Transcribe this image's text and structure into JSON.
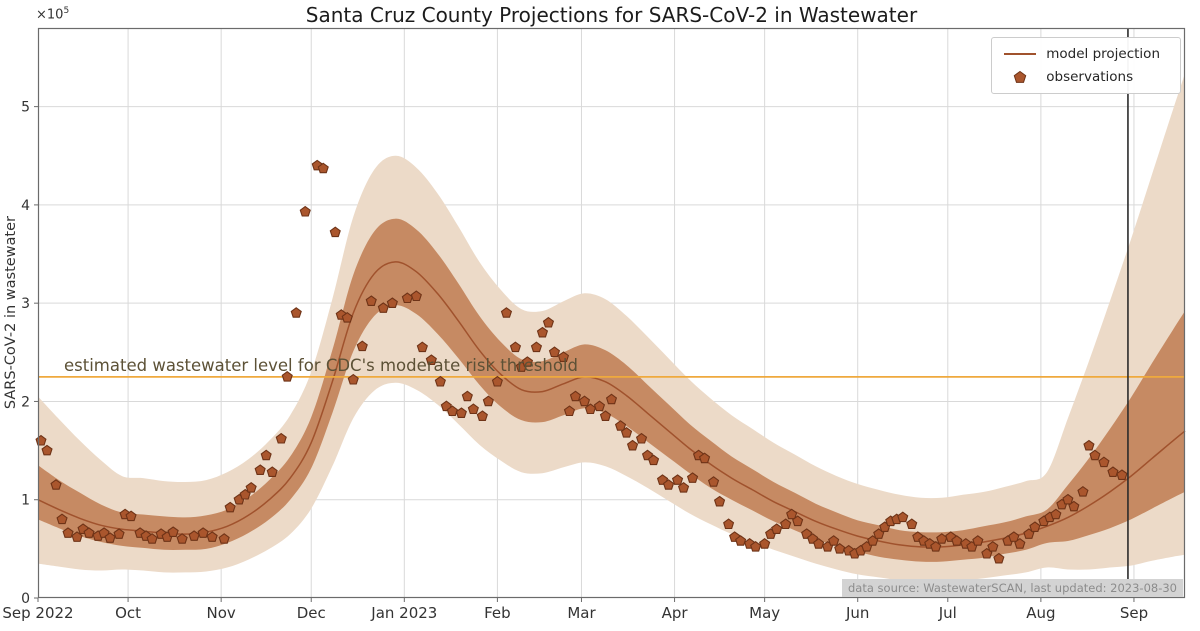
{
  "title": "Santa Cruz County Projections for SARS-CoV-2 in Wastewater",
  "axes": {
    "ylabel": "SARS-CoV-2 in wastewater",
    "offset_text": {
      "base": "×10",
      "exp": "5"
    },
    "y_ticks": [
      0,
      1,
      2,
      3,
      4,
      5
    ],
    "x_ticks": [
      {
        "label": "Sep 2022",
        "day": 0
      },
      {
        "label": "Oct",
        "day": 30
      },
      {
        "label": "Nov",
        "day": 61
      },
      {
        "label": "Dec",
        "day": 91
      },
      {
        "label": "Jan 2023",
        "day": 122
      },
      {
        "label": "Feb",
        "day": 153
      },
      {
        "label": "Mar",
        "day": 181
      },
      {
        "label": "Apr",
        "day": 212
      },
      {
        "label": "May",
        "day": 242
      },
      {
        "label": "Jun",
        "day": 273
      },
      {
        "label": "Jul",
        "day": 303
      },
      {
        "label": "Aug",
        "day": 334
      },
      {
        "label": "Sep",
        "day": 365
      }
    ],
    "xlim_days": [
      0,
      382
    ],
    "ylim": [
      0,
      5.8
    ],
    "grid": true
  },
  "legend": {
    "position": "upper right",
    "items": [
      {
        "label": "model projection",
        "type": "line"
      },
      {
        "label": "observations",
        "type": "pentagon"
      }
    ]
  },
  "threshold": {
    "value": 2.25,
    "label": "estimated wastewater level for CDC's moderate risk threshold"
  },
  "vline": {
    "day": 363,
    "date": "2023-08-30"
  },
  "source_note": "data source: WastewaterSCAN, last updated: 2023-08-30",
  "colors": {
    "model_line": "#a0522d",
    "band_inner": "#c68a63",
    "band_outer": "#ecdac8",
    "obs_face": "#aa562d",
    "obs_edge": "#6e3317",
    "threshold": "#efa93d",
    "threshold_text": "#5c5136",
    "vline": "#2b2b2b",
    "grid": "#d9d9d9",
    "frame": "#6b6b6b",
    "tick_text": "#333333",
    "title_text": "#1c1c1c",
    "source_bg": "#d3d3d3",
    "source_text": "#8c8c8c",
    "legend_border": "#cccccc",
    "legend_text": "#262626"
  },
  "chart_data": {
    "type": "line",
    "title": "Santa Cruz County Projections for SARS-CoV-2 in Wastewater",
    "xlabel": "",
    "ylabel": "SARS-CoV-2 in wastewater (×10⁵)",
    "x_unit": "days since 2022-09-01",
    "value_unit": "1e5 copies",
    "model": {
      "name": "model projection",
      "days": [
        0,
        7,
        14,
        21,
        28,
        35,
        42,
        49,
        56,
        63,
        70,
        77,
        84,
        91,
        98,
        105,
        112,
        119,
        126,
        133,
        140,
        147,
        154,
        161,
        168,
        175,
        182,
        189,
        196,
        203,
        210,
        217,
        224,
        231,
        238,
        245,
        252,
        259,
        266,
        273,
        280,
        287,
        294,
        301,
        308,
        315,
        322,
        329,
        336,
        343,
        350,
        357,
        364,
        371,
        378,
        382
      ],
      "values": [
        1.0,
        0.9,
        0.81,
        0.74,
        0.7,
        0.68,
        0.66,
        0.65,
        0.67,
        0.73,
        0.84,
        1.0,
        1.22,
        1.58,
        2.2,
        2.9,
        3.3,
        3.42,
        3.32,
        3.1,
        2.82,
        2.52,
        2.28,
        2.12,
        2.1,
        2.18,
        2.25,
        2.2,
        2.06,
        1.88,
        1.7,
        1.52,
        1.36,
        1.22,
        1.1,
        0.98,
        0.88,
        0.78,
        0.7,
        0.63,
        0.58,
        0.54,
        0.52,
        0.52,
        0.54,
        0.57,
        0.61,
        0.66,
        0.73,
        0.82,
        0.94,
        1.08,
        1.24,
        1.42,
        1.6,
        1.7
      ]
    },
    "inner_band": {
      "lo": [
        0.8,
        0.71,
        0.63,
        0.57,
        0.53,
        0.51,
        0.49,
        0.49,
        0.5,
        0.56,
        0.66,
        0.8,
        1.0,
        1.32,
        1.88,
        2.51,
        2.87,
        2.98,
        2.89,
        2.69,
        2.44,
        2.17,
        1.95,
        1.81,
        1.79,
        1.86,
        1.93,
        1.88,
        1.75,
        1.59,
        1.43,
        1.27,
        1.12,
        1.0,
        0.89,
        0.78,
        0.69,
        0.6,
        0.53,
        0.47,
        0.42,
        0.39,
        0.37,
        0.37,
        0.39,
        0.41,
        0.45,
        0.49,
        0.56,
        0.58,
        0.64,
        0.71,
        0.8,
        0.91,
        1.02,
        1.08
      ],
      "hi": [
        1.35,
        1.2,
        1.07,
        0.95,
        0.87,
        0.85,
        0.83,
        0.82,
        0.84,
        0.9,
        1.02,
        1.2,
        1.44,
        1.84,
        2.52,
        3.29,
        3.73,
        3.86,
        3.75,
        3.51,
        3.2,
        2.87,
        2.61,
        2.43,
        2.41,
        2.5,
        2.58,
        2.52,
        2.37,
        2.17,
        1.97,
        1.77,
        1.6,
        1.44,
        1.31,
        1.18,
        1.07,
        0.96,
        0.87,
        0.79,
        0.74,
        0.69,
        0.67,
        0.67,
        0.69,
        0.73,
        0.77,
        0.83,
        0.9,
        1.15,
        1.42,
        1.72,
        2.04,
        2.39,
        2.73,
        2.92
      ]
    },
    "outer_band": {
      "lo": [
        0.35,
        0.32,
        0.29,
        0.28,
        0.29,
        0.28,
        0.26,
        0.26,
        0.27,
        0.31,
        0.39,
        0.5,
        0.65,
        0.91,
        1.34,
        1.83,
        2.11,
        2.19,
        2.12,
        1.97,
        1.77,
        1.56,
        1.4,
        1.28,
        1.27,
        1.33,
        1.38,
        1.34,
        1.24,
        1.12,
        0.99,
        0.86,
        0.75,
        0.65,
        0.57,
        0.49,
        0.42,
        0.35,
        0.29,
        0.24,
        0.21,
        0.18,
        0.16,
        0.16,
        0.18,
        0.2,
        0.23,
        0.26,
        0.31,
        0.29,
        0.29,
        0.31,
        0.33,
        0.38,
        0.42,
        0.44
      ],
      "hi": [
        2.05,
        1.82,
        1.6,
        1.4,
        1.24,
        1.22,
        1.19,
        1.18,
        1.2,
        1.28,
        1.41,
        1.6,
        1.86,
        2.3,
        3.04,
        3.88,
        4.36,
        4.5,
        4.38,
        4.12,
        3.78,
        3.42,
        3.14,
        2.94,
        2.92,
        3.02,
        3.1,
        3.04,
        2.87,
        2.66,
        2.44,
        2.22,
        2.03,
        1.86,
        1.72,
        1.58,
        1.46,
        1.34,
        1.24,
        1.16,
        1.1,
        1.05,
        1.02,
        1.02,
        1.05,
        1.08,
        1.13,
        1.19,
        1.28,
        1.83,
        2.41,
        3.02,
        3.65,
        4.31,
        4.97,
        5.34
      ]
    },
    "observations": {
      "name": "observations",
      "days": [
        1,
        3,
        6,
        8,
        10,
        13,
        15,
        17,
        20,
        22,
        24,
        27,
        29,
        31,
        34,
        36,
        38,
        41,
        43,
        45,
        48,
        52,
        55,
        58,
        62,
        64,
        67,
        69,
        71,
        74,
        76,
        78,
        81,
        83,
        86,
        89,
        93,
        95,
        99,
        101,
        103,
        105,
        108,
        111,
        115,
        118,
        123,
        126,
        128,
        131,
        134,
        136,
        138,
        141,
        143,
        145,
        148,
        150,
        153,
        156,
        159,
        161,
        163,
        166,
        168,
        170,
        172,
        175,
        177,
        179,
        182,
        184,
        187,
        189,
        191,
        194,
        196,
        198,
        201,
        203,
        205,
        208,
        210,
        213,
        215,
        218,
        220,
        222,
        225,
        227,
        230,
        232,
        234,
        237,
        239,
        242,
        244,
        246,
        249,
        251,
        253,
        256,
        258,
        260,
        263,
        265,
        267,
        270,
        272,
        274,
        276,
        278,
        280,
        282,
        284,
        286,
        288,
        291,
        293,
        295,
        297,
        299,
        301,
        304,
        306,
        309,
        311,
        313,
        316,
        318,
        320,
        323,
        325,
        327,
        330,
        332,
        335,
        337,
        339,
        341,
        343,
        345,
        348,
        350,
        352,
        355,
        358,
        361
      ],
      "values": [
        1.6,
        1.5,
        1.15,
        0.8,
        0.66,
        0.62,
        0.7,
        0.66,
        0.63,
        0.66,
        0.61,
        0.65,
        0.85,
        0.83,
        0.66,
        0.63,
        0.6,
        0.65,
        0.62,
        0.67,
        0.6,
        0.63,
        0.66,
        0.62,
        0.6,
        0.92,
        1.0,
        1.05,
        1.12,
        1.3,
        1.45,
        1.28,
        1.62,
        2.25,
        2.9,
        3.93,
        4.4,
        4.37,
        3.72,
        2.88,
        2.85,
        2.22,
        2.56,
        3.02,
        2.95,
        3.0,
        3.05,
        3.07,
        2.55,
        2.42,
        2.2,
        1.95,
        1.9,
        1.88,
        2.05,
        1.92,
        1.85,
        2.0,
        2.2,
        2.9,
        2.55,
        2.35,
        2.4,
        2.55,
        2.7,
        2.8,
        2.5,
        2.45,
        1.9,
        2.05,
        2.0,
        1.92,
        1.95,
        1.85,
        2.02,
        1.75,
        1.68,
        1.55,
        1.62,
        1.45,
        1.4,
        1.2,
        1.15,
        1.2,
        1.12,
        1.22,
        1.45,
        1.42,
        1.18,
        0.98,
        0.75,
        0.62,
        0.58,
        0.55,
        0.52,
        0.55,
        0.65,
        0.7,
        0.75,
        0.85,
        0.78,
        0.65,
        0.6,
        0.55,
        0.52,
        0.58,
        0.5,
        0.48,
        0.45,
        0.48,
        0.52,
        0.58,
        0.65,
        0.72,
        0.78,
        0.8,
        0.82,
        0.75,
        0.62,
        0.58,
        0.55,
        0.52,
        0.6,
        0.62,
        0.58,
        0.55,
        0.52,
        0.58,
        0.45,
        0.52,
        0.4,
        0.58,
        0.62,
        0.55,
        0.65,
        0.72,
        0.78,
        0.82,
        0.85,
        0.95,
        1.0,
        0.93,
        1.08,
        1.55,
        1.45,
        1.38,
        1.28,
        1.25
      ]
    },
    "annotations": [
      {
        "text": "estimated wastewater level for CDC's moderate risk threshold",
        "y": 2.25,
        "type": "hline"
      },
      {
        "text": "vertical line at last-updated date 2023-08-30",
        "x_day": 363,
        "type": "vline"
      }
    ]
  }
}
